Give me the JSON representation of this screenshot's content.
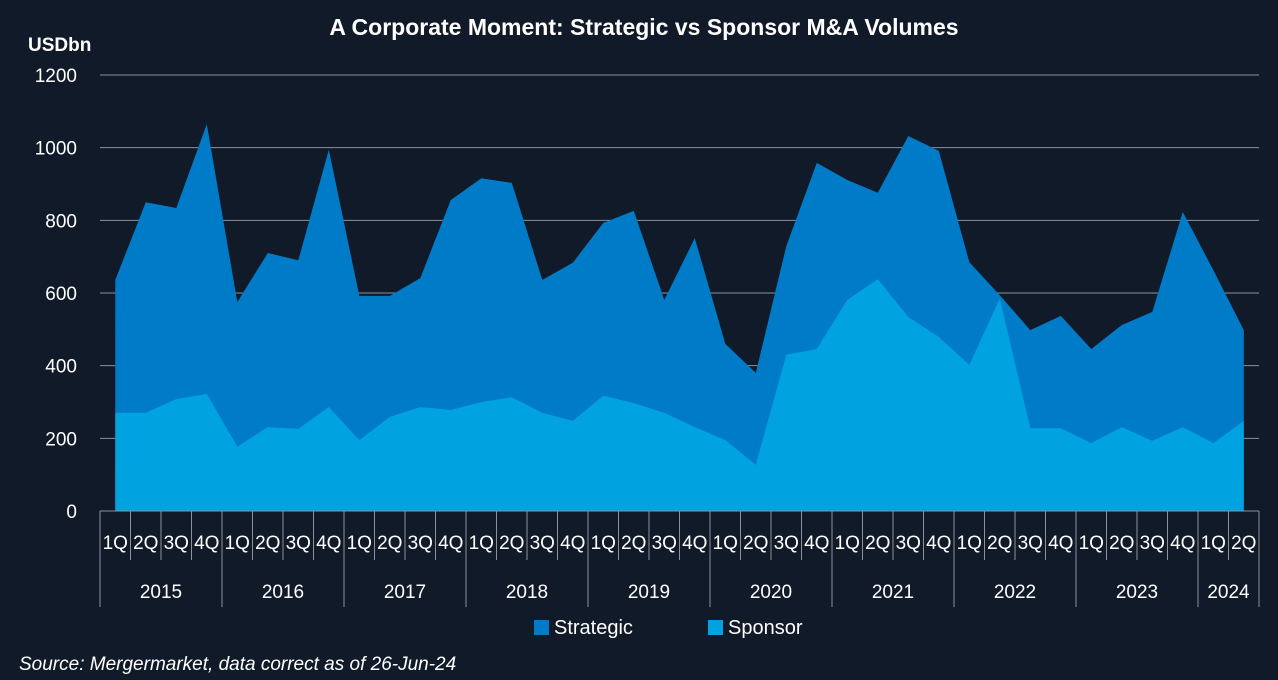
{
  "chart_data": {
    "type": "area",
    "stacked": false,
    "title": "A Corporate Moment: Strategic vs Sponsor M&A Volumes",
    "ylabel": "USDbn",
    "xlabel": "",
    "ylim": [
      0,
      1200
    ],
    "yticks": [
      0,
      200,
      400,
      600,
      800,
      1000,
      1200
    ],
    "grid": true,
    "legend_position": "bottom",
    "years": [
      {
        "label": "2015",
        "quarters": 4
      },
      {
        "label": "2016",
        "quarters": 4
      },
      {
        "label": "2017",
        "quarters": 4
      },
      {
        "label": "2018",
        "quarters": 4
      },
      {
        "label": "2019",
        "quarters": 4
      },
      {
        "label": "2020",
        "quarters": 4
      },
      {
        "label": "2021",
        "quarters": 4
      },
      {
        "label": "2022",
        "quarters": 4
      },
      {
        "label": "2023",
        "quarters": 4
      },
      {
        "label": "2024",
        "quarters": 2
      }
    ],
    "categories": [
      "1Q",
      "2Q",
      "3Q",
      "4Q",
      "1Q",
      "2Q",
      "3Q",
      "4Q",
      "1Q",
      "2Q",
      "3Q",
      "4Q",
      "1Q",
      "2Q",
      "3Q",
      "4Q",
      "1Q",
      "2Q",
      "3Q",
      "4Q",
      "1Q",
      "2Q",
      "3Q",
      "4Q",
      "1Q",
      "2Q",
      "3Q",
      "4Q",
      "1Q",
      "2Q",
      "3Q",
      "4Q",
      "1Q",
      "2Q",
      "3Q",
      "4Q",
      "1Q",
      "2Q"
    ],
    "series": [
      {
        "name": "Strategic",
        "color": "#007bc8",
        "values": [
          636,
          850,
          834,
          1065,
          575,
          710,
          690,
          994,
          592,
          592,
          641,
          856,
          916,
          903,
          636,
          683,
          793,
          826,
          581,
          751,
          460,
          380,
          729,
          958,
          911,
          876,
          1032,
          991,
          685,
          594,
          498,
          537,
          446,
          512,
          548,
          823,
          663,
          498
        ]
      },
      {
        "name": "Sponsor",
        "color": "#00a3e0",
        "values": [
          270,
          270,
          308,
          322,
          177,
          231,
          226,
          286,
          195,
          259,
          286,
          278,
          300,
          313,
          270,
          248,
          317,
          297,
          270,
          231,
          195,
          127,
          430,
          446,
          581,
          638,
          534,
          479,
          402,
          584,
          228,
          228,
          187,
          231,
          193,
          231,
          187,
          248
        ]
      }
    ]
  },
  "source": "Source: Mergermarket, data correct as of 26-Jun-24"
}
